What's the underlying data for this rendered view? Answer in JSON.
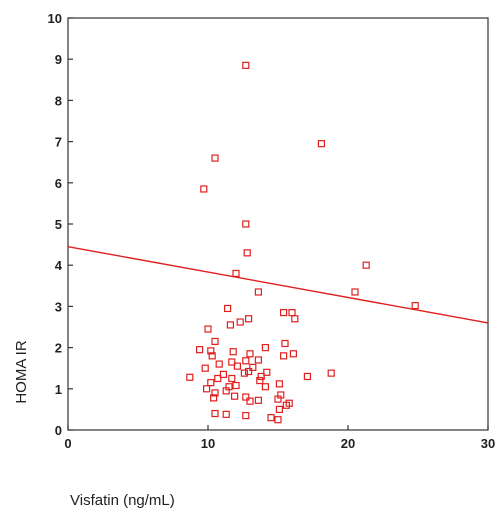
{
  "chart_data": {
    "type": "scatter",
    "title": "",
    "xlabel": "Visfatin (ng/mL)",
    "ylabel": "HOMA IR",
    "xlim": [
      0,
      30
    ],
    "ylim": [
      0,
      10
    ],
    "x_ticks": [
      0,
      10,
      20,
      30
    ],
    "y_ticks": [
      0,
      1,
      2,
      3,
      4,
      5,
      6,
      7,
      8,
      9,
      10
    ],
    "grid": false,
    "colors": {
      "points": "#e0201e",
      "fit_line": "#e0201e",
      "axes": "#333333"
    },
    "series": [
      {
        "marker": "open-square",
        "points": [
          [
            12.7,
            8.85
          ],
          [
            18.1,
            6.95
          ],
          [
            10.5,
            6.6
          ],
          [
            9.7,
            5.85
          ],
          [
            12.7,
            5.0
          ],
          [
            12.8,
            4.3
          ],
          [
            21.3,
            4.0
          ],
          [
            12.0,
            3.8
          ],
          [
            20.5,
            3.35
          ],
          [
            13.6,
            3.35
          ],
          [
            24.8,
            3.02
          ],
          [
            11.4,
            2.95
          ],
          [
            15.4,
            2.85
          ],
          [
            16.0,
            2.85
          ],
          [
            16.2,
            2.7
          ],
          [
            12.9,
            2.7
          ],
          [
            12.3,
            2.62
          ],
          [
            11.6,
            2.55
          ],
          [
            10.0,
            2.45
          ],
          [
            10.5,
            2.15
          ],
          [
            15.5,
            2.1
          ],
          [
            14.1,
            2.0
          ],
          [
            9.4,
            1.95
          ],
          [
            10.2,
            1.92
          ],
          [
            11.8,
            1.9
          ],
          [
            13.0,
            1.85
          ],
          [
            16.1,
            1.85
          ],
          [
            10.3,
            1.8
          ],
          [
            15.4,
            1.8
          ],
          [
            13.6,
            1.7
          ],
          [
            12.7,
            1.68
          ],
          [
            11.7,
            1.65
          ],
          [
            10.8,
            1.6
          ],
          [
            12.1,
            1.55
          ],
          [
            13.2,
            1.52
          ],
          [
            9.8,
            1.5
          ],
          [
            12.9,
            1.42
          ],
          [
            14.2,
            1.4
          ],
          [
            12.6,
            1.38
          ],
          [
            11.1,
            1.35
          ],
          [
            13.8,
            1.3
          ],
          [
            17.1,
            1.3
          ],
          [
            8.7,
            1.28
          ],
          [
            18.8,
            1.38
          ],
          [
            11.7,
            1.25
          ],
          [
            10.7,
            1.25
          ],
          [
            13.7,
            1.2
          ],
          [
            10.2,
            1.15
          ],
          [
            15.1,
            1.12
          ],
          [
            12.0,
            1.08
          ],
          [
            11.5,
            1.05
          ],
          [
            14.1,
            1.05
          ],
          [
            9.9,
            1.0
          ],
          [
            11.3,
            0.95
          ],
          [
            10.5,
            0.9
          ],
          [
            15.2,
            0.85
          ],
          [
            11.9,
            0.82
          ],
          [
            12.7,
            0.8
          ],
          [
            10.4,
            0.78
          ],
          [
            15.0,
            0.75
          ],
          [
            13.6,
            0.72
          ],
          [
            13.0,
            0.7
          ],
          [
            15.8,
            0.65
          ],
          [
            15.6,
            0.6
          ],
          [
            15.1,
            0.5
          ],
          [
            10.5,
            0.4
          ],
          [
            11.3,
            0.38
          ],
          [
            12.7,
            0.35
          ],
          [
            14.5,
            0.3
          ],
          [
            15.0,
            0.25
          ]
        ]
      }
    ],
    "fit_line": {
      "x": [
        0,
        30
      ],
      "y": [
        4.45,
        2.6
      ]
    }
  }
}
